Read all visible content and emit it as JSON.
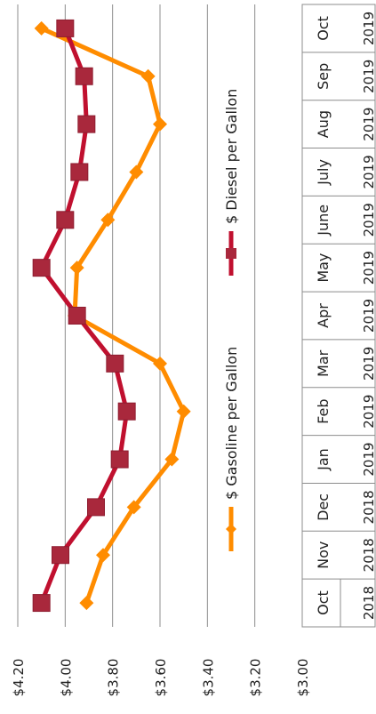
{
  "chart_data": {
    "type": "line",
    "orientation": "rotated-90-clockwise",
    "categories": [
      "Oct",
      "Nov",
      "Dec",
      "Jan",
      "Feb",
      "Mar",
      "Apr",
      "May",
      "June",
      "July",
      "Aug",
      "Sep",
      "Oct"
    ],
    "years": [
      "2018",
      "2018",
      "2018",
      "2019",
      "2019",
      "2019",
      "2019",
      "2019",
      "2019",
      "2019",
      "2019",
      "2019",
      "2019"
    ],
    "series": [
      {
        "name": "$ Gasoline per Gallon",
        "color": "#ff8c00",
        "marker": "diamond",
        "values": [
          3.91,
          3.84,
          3.71,
          3.55,
          3.5,
          3.6,
          3.96,
          3.95,
          3.82,
          3.7,
          3.6,
          3.65,
          4.1
        ]
      },
      {
        "name": "$ Diesel per Gallon",
        "color": "#c0102f",
        "marker": "square",
        "values": [
          4.1,
          4.02,
          3.87,
          3.77,
          3.74,
          3.79,
          3.95,
          4.1,
          4.0,
          3.94,
          3.91,
          3.92,
          4.0
        ]
      }
    ],
    "y_ticks": [
      "$3.00",
      "$3.20",
      "$3.40",
      "$3.60",
      "$3.80",
      "$4.00",
      "$4.20"
    ],
    "ylim": [
      3.0,
      4.2
    ],
    "grid": true,
    "legend_position": "inside-center"
  }
}
